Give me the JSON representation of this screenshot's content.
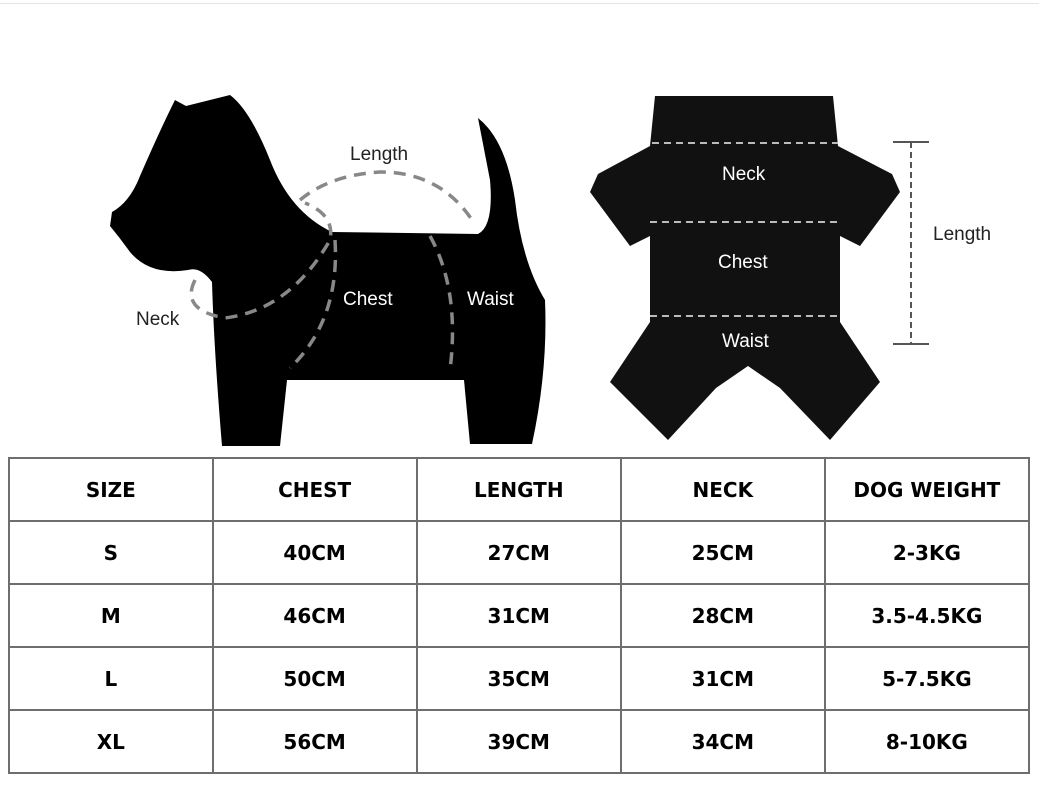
{
  "dog_diagram": {
    "length": "Length",
    "neck": "Neck",
    "chest": "Chest",
    "waist": "Waist"
  },
  "garment_diagram": {
    "neck": "Neck",
    "chest": "Chest",
    "waist": "Waist",
    "length": "Length"
  },
  "table": {
    "headers": [
      "SIZE",
      "CHEST",
      "LENGTH",
      "NECK",
      "DOG WEIGHT"
    ],
    "rows": [
      [
        "S",
        "40CM",
        "27CM",
        "25CM",
        "2-3KG"
      ],
      [
        "M",
        "46CM",
        "31CM",
        "28CM",
        "3.5-4.5KG"
      ],
      [
        "L",
        "50CM",
        "35CM",
        "31CM",
        "5-7.5KG"
      ],
      [
        "XL",
        "56CM",
        "39CM",
        "34CM",
        "8-10KG"
      ]
    ]
  }
}
